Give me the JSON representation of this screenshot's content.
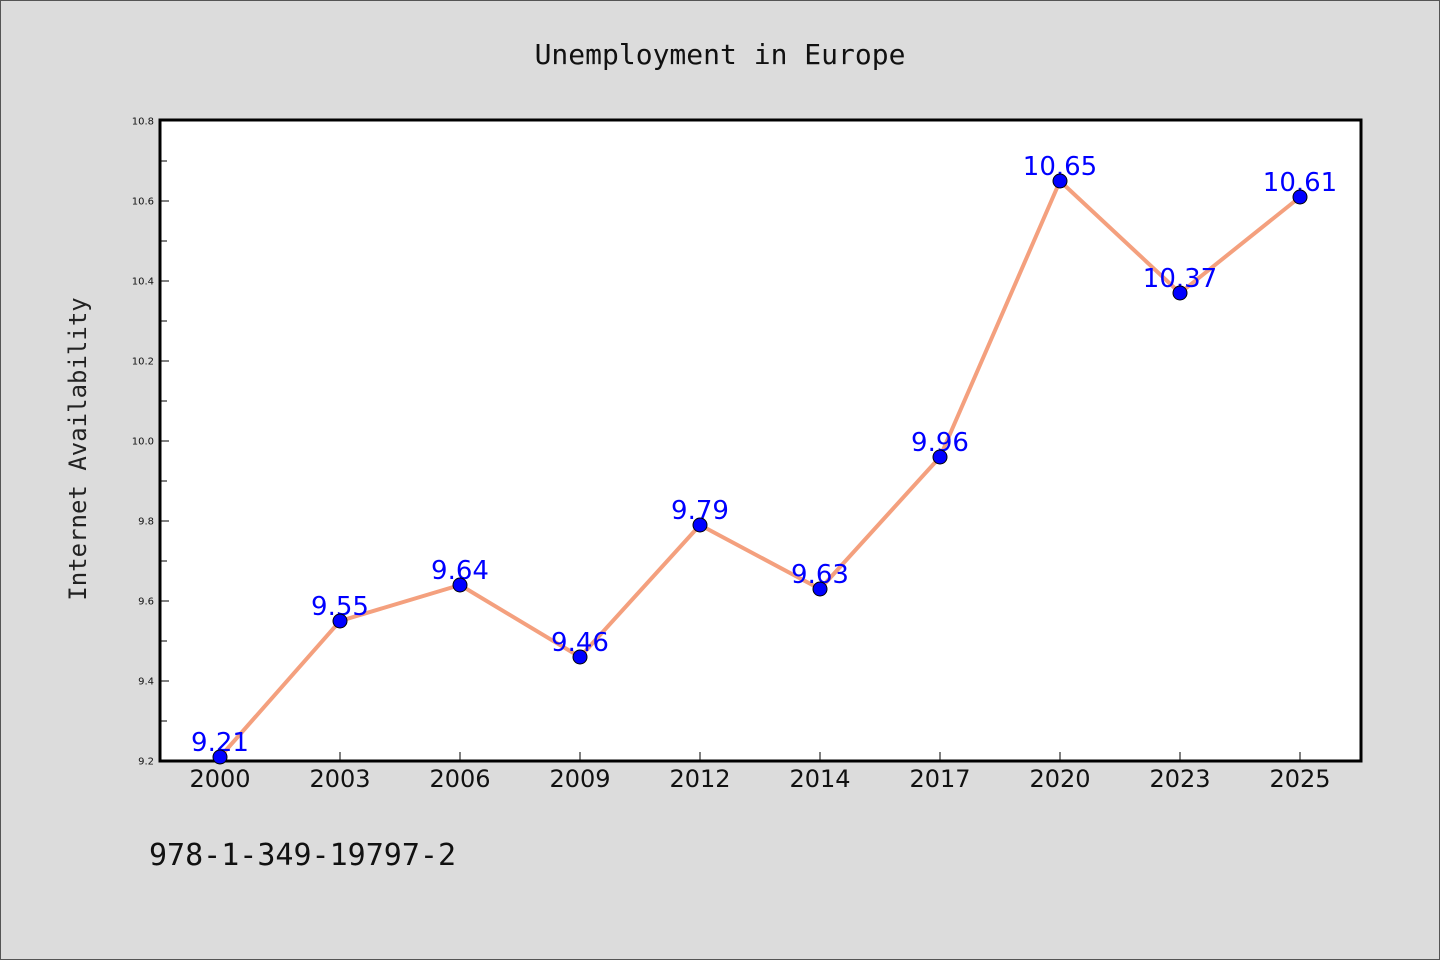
{
  "chart_data": {
    "type": "line",
    "title": "Unemployment in Europe",
    "xlabel": "",
    "ylabel": "Internet Availability",
    "categories": [
      "2000",
      "2003",
      "2006",
      "2009",
      "2012",
      "2014",
      "2017",
      "2020",
      "2023",
      "2025"
    ],
    "series": [
      {
        "values": [
          9.21,
          9.55,
          9.64,
          9.46,
          9.79,
          9.63,
          9.96,
          10.65,
          10.37,
          10.61
        ],
        "line_color": "#f4a07e",
        "marker_color": "#0000ff"
      }
    ],
    "data_labels": [
      "9.21",
      "9.55",
      "9.64",
      "9.46",
      "9.79",
      "9.63",
      "9.96",
      "10.65",
      "10.37",
      "10.61"
    ],
    "ylim": [
      9.2,
      10.8
    ],
    "yticks": [
      "9.2",
      "9.4",
      "9.6",
      "9.8",
      "10.0",
      "10.2",
      "10.4",
      "10.6",
      "10.8"
    ],
    "grid": false,
    "legend": "none"
  },
  "footnote": "978-1-349-19797-2"
}
